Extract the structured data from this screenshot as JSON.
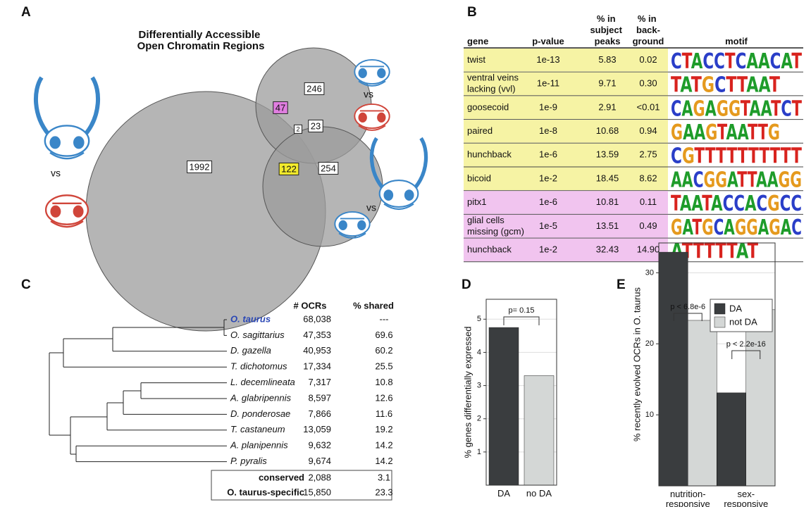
{
  "panel_labels": [
    "A",
    "B",
    "C",
    "D",
    "E"
  ],
  "venn": {
    "title": "Differentially Accessible Open Chromatin Regions",
    "regions": [
      1992,
      246,
      254,
      47,
      23,
      122,
      2
    ],
    "vs_labels": [
      "vs",
      "vs",
      "vs"
    ]
  },
  "table": {
    "header": [
      "gene",
      "p-value",
      "% in subject peaks",
      "% in back-ground",
      "motif"
    ],
    "rows": [
      [
        "twist",
        "1e-13",
        "5.83",
        "0.02",
        "CTACCTCAACAT"
      ],
      [
        "ventral veins lacking (vvl)",
        "1e-11",
        "9.71",
        "0.30",
        "TATGCTTAAT"
      ],
      [
        "goosecoid",
        "1e-9",
        "2.91",
        "<0.01",
        "CAGAGGTAATCT"
      ],
      [
        "paired",
        "1e-8",
        "10.68",
        "0.94",
        "GAAGTAATTG"
      ],
      [
        "hunchback",
        "1e-6",
        "13.59",
        "2.75",
        "CGTTTTTTTTTT"
      ],
      [
        "bicoid",
        "1e-2",
        "18.45",
        "8.62",
        "AACGGATTAAGG"
      ],
      [
        "pitx1",
        "1e-6",
        "10.81",
        "0.11",
        "TAATACCACGCC"
      ],
      [
        "glial cells missing (gcm)",
        "1e-5",
        "13.51",
        "0.49",
        "GATGCAGGAGAC"
      ],
      [
        "hunchback",
        "1e-2",
        "32.43",
        "14.90",
        "ATTTTTAT"
      ]
    ]
  },
  "tree": {
    "header": [
      "# OCRs",
      "% shared"
    ],
    "rows": [
      [
        "O. taurus",
        "68,038",
        "---"
      ],
      [
        "O. sagittarius",
        "47,353",
        "69.6"
      ],
      [
        "D. gazella",
        "40,953",
        "60.2"
      ],
      [
        "T. dichotomus",
        "17,334",
        "25.5"
      ],
      [
        "L. decemlineata",
        "7,317",
        "10.8"
      ],
      [
        "A. glabripennis",
        "8,597",
        "12.6"
      ],
      [
        "D. ponderosae",
        "7,866",
        "11.6"
      ],
      [
        "T. castaneum",
        "13,059",
        "19.2"
      ],
      [
        "A. planipennis",
        "9,632",
        "14.2"
      ],
      [
        "P. pyralis",
        "9,674",
        "14.2"
      ]
    ],
    "summary": [
      [
        "conserved",
        "2,088",
        "3.1"
      ],
      [
        "O. taurus-specific",
        "15,850",
        "23.3"
      ]
    ]
  },
  "chart_data": [
    {
      "type": "bar",
      "ylabel": "% genes differentially expressed",
      "categories": [
        "DA",
        "no DA"
      ],
      "values": [
        4.75,
        3.3
      ],
      "colors": [
        "#3a3d3f",
        "#d4d7d6"
      ],
      "ylim": [
        0,
        5.6
      ],
      "yticks": [
        1,
        2,
        3,
        4,
        5
      ],
      "grid": true,
      "annotations": [
        "p= 0.15"
      ]
    },
    {
      "type": "grouped_bar",
      "ylabel": "% recently evolved OCRs in O. taurus",
      "categories": [
        "nutrition-responsive",
        "sex-responsive"
      ],
      "series": [
        {
          "name": "DA",
          "color": "#3a3d3f",
          "values": [
            32.9,
            13.1
          ]
        },
        {
          "name": "not DA",
          "color": "#d4d7d6",
          "values": [
            23.3,
            24.8
          ]
        }
      ],
      "ylim": [
        0,
        34.2
      ],
      "yticks": [
        10,
        20,
        30
      ],
      "grid": true,
      "legend": "upper right",
      "annotations": [
        "p < 6.8e-6",
        "p < 2.2e-16"
      ]
    }
  ]
}
